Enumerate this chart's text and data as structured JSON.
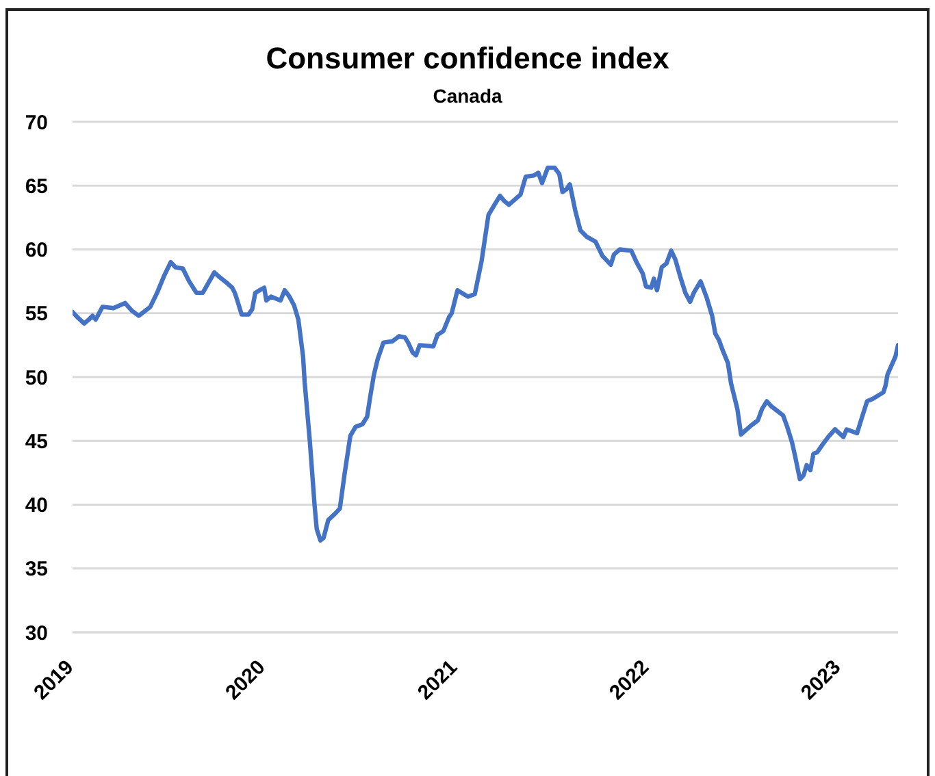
{
  "chart_data": {
    "type": "line",
    "title": "Consumer confidence index",
    "subtitle": "Canada",
    "x": [
      "2019-01-01",
      "2019-01-10",
      "2019-01-23",
      "2019-02-01",
      "2019-02-08",
      "2019-02-14",
      "2019-02-27",
      "2019-03-20",
      "2019-04-11",
      "2019-04-24",
      "2019-05-07",
      "2019-05-29",
      "2019-06-11",
      "2019-06-24",
      "2019-07-07",
      "2019-07-16",
      "2019-07-30",
      "2019-08-11",
      "2019-08-25",
      "2019-09-06",
      "2019-09-28",
      "2019-10-06",
      "2019-10-24",
      "2019-11-01",
      "2019-11-06",
      "2019-11-10",
      "2019-11-19",
      "2019-12-02",
      "2019-12-09",
      "2019-12-15",
      "2019-12-23",
      "2020-01-01",
      "2020-01-05",
      "2020-01-14",
      "2020-02-01",
      "2020-02-09",
      "2020-02-18",
      "2020-02-27",
      "2020-03-06",
      "2020-03-15",
      "2020-03-18",
      "2020-03-28",
      "2020-04-06",
      "2020-04-10",
      "2020-04-17",
      "2020-04-23",
      "2020-05-02",
      "2020-05-15",
      "2020-05-24",
      "2020-06-02",
      "2020-06-13",
      "2020-06-23",
      "2020-07-06",
      "2020-07-15",
      "2020-07-21",
      "2020-07-28",
      "2020-08-04",
      "2020-08-15",
      "2020-09-01",
      "2020-09-14",
      "2020-09-25",
      "2020-10-01",
      "2020-10-10",
      "2020-10-16",
      "2020-10-23",
      "2020-11-18",
      "2020-11-26",
      "2020-12-07",
      "2020-12-18",
      "2020-12-23",
      "2021-01-03",
      "2021-01-23",
      "2021-02-05",
      "2021-02-18",
      "2021-03-03",
      "2021-03-16",
      "2021-03-25",
      "2021-04-02",
      "2021-04-11",
      "2021-05-03",
      "2021-05-13",
      "2021-05-29",
      "2021-06-06",
      "2021-06-13",
      "2021-06-24",
      "2021-07-07",
      "2021-07-16",
      "2021-07-22",
      "2021-07-29",
      "2021-08-05",
      "2021-08-15",
      "2021-08-25",
      "2021-09-06",
      "2021-09-23",
      "2021-10-06",
      "2021-10-22",
      "2021-10-28",
      "2021-11-08",
      "2021-11-30",
      "2021-12-10",
      "2021-12-22",
      "2021-12-28",
      "2022-01-07",
      "2022-01-12",
      "2022-01-18",
      "2022-01-27",
      "2022-02-05",
      "2022-02-14",
      "2022-02-22",
      "2022-03-03",
      "2022-03-13",
      "2022-03-22",
      "2022-03-29",
      "2022-04-11",
      "2022-04-22",
      "2022-05-03",
      "2022-05-09",
      "2022-05-16",
      "2022-05-23",
      "2022-06-02",
      "2022-06-08",
      "2022-06-20",
      "2022-06-27",
      "2022-07-16",
      "2022-07-29",
      "2022-08-06",
      "2022-08-15",
      "2022-08-24",
      "2022-09-15",
      "2022-09-23",
      "2022-10-02",
      "2022-10-08",
      "2022-10-17",
      "2022-10-24",
      "2022-10-30",
      "2022-11-06",
      "2022-11-12",
      "2022-11-19",
      "2022-11-29",
      "2022-12-10",
      "2022-12-23",
      "2023-01-08",
      "2023-01-14",
      "2023-02-03",
      "2023-02-12",
      "2023-02-22",
      "2023-03-05",
      "2023-03-25",
      "2023-03-29",
      "2023-04-02",
      "2023-04-17",
      "2023-04-22"
    ],
    "values": [
      55.1,
      54.7,
      54.2,
      54.5,
      54.8,
      54.5,
      55.5,
      55.4,
      55.8,
      55.2,
      54.8,
      55.5,
      56.6,
      57.9,
      59.0,
      58.6,
      58.5,
      57.5,
      56.6,
      56.6,
      58.2,
      57.9,
      57.3,
      57.0,
      56.6,
      56.1,
      54.9,
      54.9,
      55.3,
      56.6,
      56.8,
      57.0,
      56.0,
      56.3,
      56.0,
      56.8,
      56.3,
      55.6,
      54.5,
      51.6,
      49.6,
      44.9,
      39.9,
      38.1,
      37.2,
      37.4,
      38.8,
      39.3,
      39.7,
      42.4,
      45.4,
      46.1,
      46.3,
      46.9,
      48.5,
      50.2,
      51.4,
      52.7,
      52.8,
      53.2,
      53.1,
      52.7,
      51.9,
      51.7,
      52.5,
      52.4,
      53.3,
      53.6,
      54.7,
      55.0,
      56.8,
      56.3,
      56.5,
      59.1,
      62.7,
      63.6,
      64.2,
      63.8,
      63.5,
      64.3,
      65.7,
      65.8,
      66.0,
      65.2,
      66.4,
      66.4,
      65.9,
      64.5,
      64.7,
      65.1,
      63.1,
      61.5,
      61.0,
      60.6,
      59.5,
      58.8,
      59.6,
      60.0,
      59.9,
      59.0,
      58.1,
      57.1,
      57.0,
      57.7,
      56.8,
      58.6,
      58.9,
      59.9,
      59.2,
      57.9,
      56.6,
      55.9,
      56.6,
      57.5,
      56.3,
      54.8,
      53.4,
      52.9,
      52.1,
      51.1,
      49.5,
      47.5,
      45.5,
      46.2,
      46.6,
      47.5,
      48.1,
      47.7,
      47.0,
      46.1,
      44.9,
      43.8,
      42.0,
      42.3,
      43.1,
      42.7,
      44.0,
      44.1,
      44.7,
      45.3,
      45.9,
      45.3,
      45.9,
      45.6,
      46.8,
      48.1,
      48.3,
      48.8,
      49.3,
      50.2,
      51.6,
      52.5
    ],
    "color": "#4472c4",
    "marker": "none",
    "line_style": "solid",
    "xlim": [
      "2019-01-01",
      "2023-04-22"
    ],
    "xticks": [
      "2019",
      "2020",
      "2021",
      "2022",
      "2023"
    ],
    "ylim": [
      30,
      70
    ],
    "yticks": [
      30,
      35,
      40,
      45,
      50,
      55,
      60,
      65,
      70
    ],
    "grid": "y"
  }
}
